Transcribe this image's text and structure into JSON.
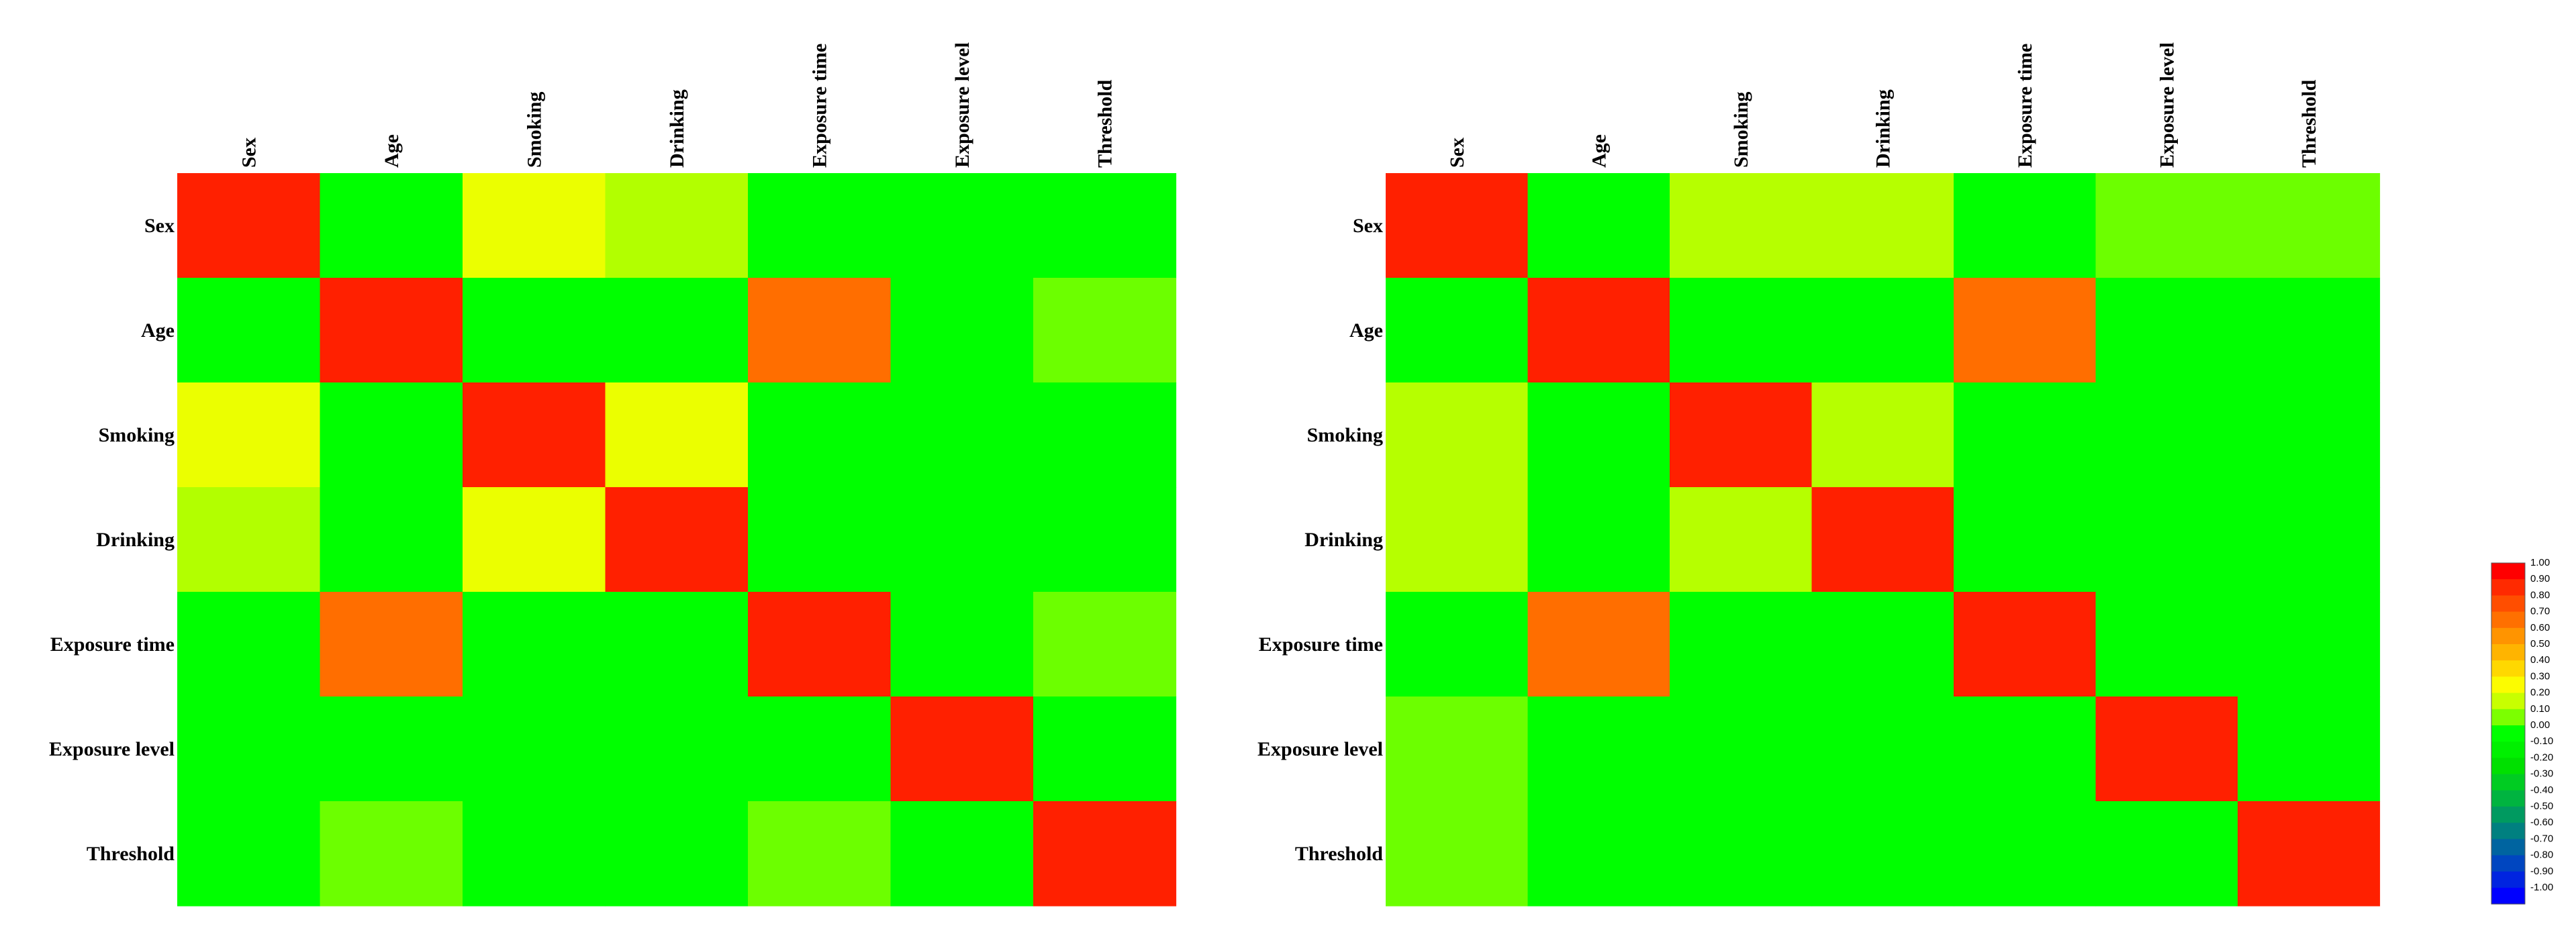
{
  "chart_data": [
    {
      "type": "heatmap",
      "title": "",
      "variables": [
        "Sex",
        "Age",
        "Smoking",
        "Drinking",
        "Exposure time",
        "Exposure level",
        "Threshold"
      ],
      "matrix": [
        [
          1.0,
          -0.05,
          0.38,
          0.2,
          -0.05,
          -0.05,
          -0.05
        ],
        [
          -0.05,
          1.0,
          -0.05,
          -0.05,
          0.75,
          -0.05,
          0.12
        ],
        [
          0.38,
          -0.05,
          1.0,
          0.38,
          -0.05,
          -0.05,
          -0.05
        ],
        [
          0.2,
          -0.05,
          0.38,
          1.0,
          -0.05,
          -0.05,
          -0.05
        ],
        [
          -0.05,
          0.75,
          -0.05,
          -0.05,
          1.0,
          -0.05,
          0.12
        ],
        [
          -0.05,
          -0.05,
          -0.05,
          -0.05,
          -0.05,
          1.0,
          -0.05
        ],
        [
          -0.05,
          0.12,
          -0.05,
          -0.05,
          0.12,
          -0.05,
          1.0
        ]
      ],
      "vmin": -1.0,
      "vmax": 1.0
    },
    {
      "type": "heatmap",
      "title": "",
      "variables": [
        "Sex",
        "Age",
        "Smoking",
        "Drinking",
        "Exposure time",
        "Exposure level",
        "Threshold"
      ],
      "matrix": [
        [
          1.0,
          -0.05,
          0.22,
          0.22,
          -0.05,
          0.12,
          0.12
        ],
        [
          -0.05,
          1.0,
          -0.05,
          -0.05,
          0.75,
          -0.05,
          -0.05
        ],
        [
          0.22,
          -0.05,
          1.0,
          0.22,
          -0.05,
          -0.05,
          -0.05
        ],
        [
          0.22,
          -0.05,
          0.22,
          1.0,
          -0.05,
          -0.05,
          -0.05
        ],
        [
          -0.05,
          0.75,
          -0.05,
          -0.05,
          1.0,
          -0.05,
          -0.05
        ],
        [
          0.12,
          -0.05,
          -0.05,
          -0.05,
          -0.05,
          1.0,
          -0.05
        ],
        [
          0.12,
          -0.05,
          -0.05,
          -0.05,
          -0.05,
          -0.05,
          1.0
        ]
      ],
      "vmin": -1.0,
      "vmax": 1.0
    }
  ],
  "colorbar": {
    "ticks": [
      "1.00",
      "0.90",
      "0.80",
      "0.70",
      "0.60",
      "0.50",
      "0.40",
      "0.30",
      "0.20",
      "0.10",
      "0.00",
      "-0.10",
      "-0.20",
      "-0.30",
      "-0.40",
      "-0.50",
      "-0.60",
      "-0.70",
      "-0.80",
      "-0.90",
      "-1.00"
    ],
    "colors": [
      "#ff0000",
      "#ff2a00",
      "#ff4e00",
      "#ff7000",
      "#ff9400",
      "#ffb400",
      "#ffd800",
      "#fcfc00",
      "#c8ff00",
      "#7cff00",
      "#00ff00",
      "#00f000",
      "#00e000",
      "#00cc22",
      "#00b440",
      "#009a60",
      "#008080",
      "#0064a0",
      "#0046c0",
      "#0024e0",
      "#0000ff"
    ]
  },
  "palette": {
    "v1.00": "#ff2000",
    "v0.75": "#ff6e00",
    "v0.38": "#ebff00",
    "v0.22": "#b6ff00",
    "v0.20": "#b2ff00",
    "v0.12": "#6cff00",
    "vneg": "#00ff00"
  }
}
